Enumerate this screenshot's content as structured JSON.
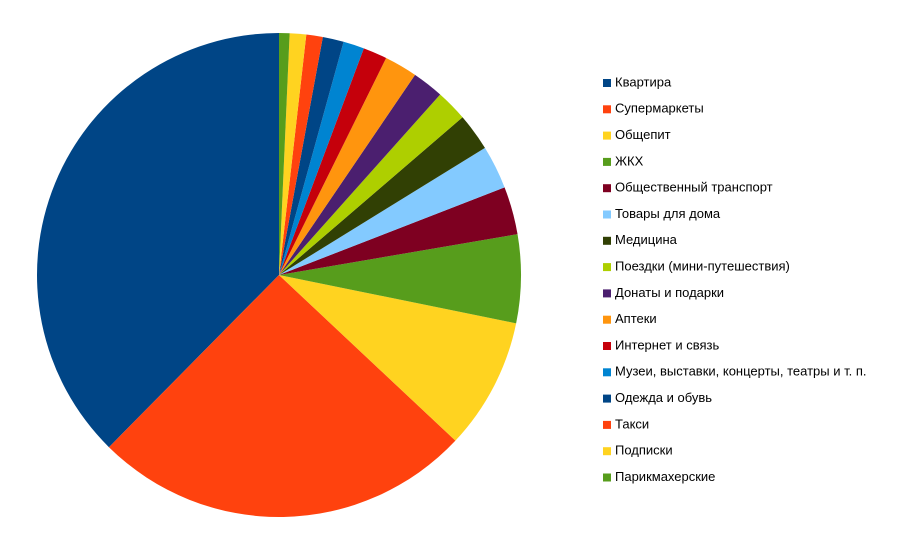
{
  "chart_data": {
    "type": "pie",
    "categories": [
      "Квартира",
      "Супермаркеты",
      "Общепит",
      "ЖКХ",
      "Общественный транспорт",
      "Товары для дома",
      "Медицина",
      "Поездки (мини-путешествия)",
      "Донаты и подарки",
      "Аптеки",
      "Интернет и связь",
      "Музеи, выставки, концерты, театры и т. п.",
      "Одежда и обувь",
      "Такси",
      "Подписки",
      "Парикмахерские"
    ],
    "values": [
      37.6,
      25.4,
      8.8,
      5.9,
      3.2,
      2.9,
      2.5,
      2.1,
      2.1,
      2.2,
      1.6,
      1.4,
      1.4,
      1.1,
      1.1,
      0.7
    ],
    "colors": [
      "#004586",
      "#ff420e",
      "#ffd320",
      "#579d1c",
      "#7e0021",
      "#83caff",
      "#314004",
      "#aecf00",
      "#4b1f6f",
      "#ff950e",
      "#c5000b",
      "#0084d1",
      "#004586",
      "#ff420e",
      "#ffd320",
      "#579d1c"
    ],
    "direction": "counterclockwise",
    "legend": "right"
  }
}
